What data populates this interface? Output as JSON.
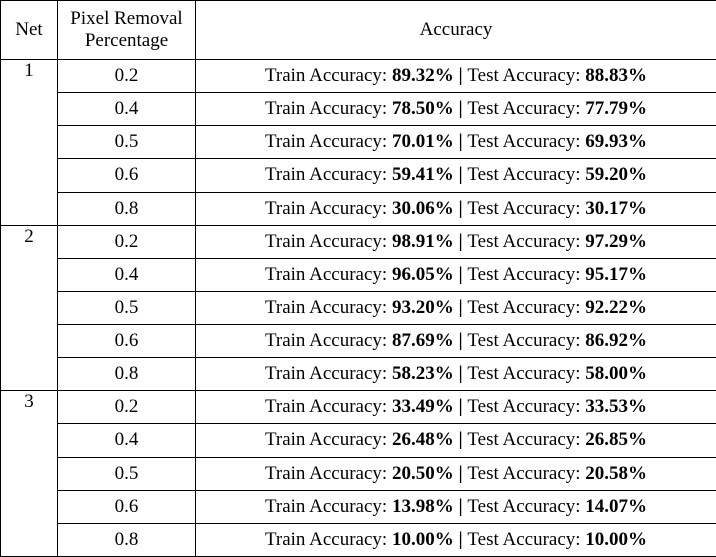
{
  "table": {
    "headers": {
      "net": "Net",
      "pixel_line1": "Pixel Removal",
      "pixel_line2": "Percentage",
      "accuracy": "Accuracy"
    },
    "labels": {
      "train_prefix": "Train Accuracy: ",
      "separator": " | ",
      "test_prefix": "Test Accuracy: "
    },
    "groups": [
      {
        "net": "1",
        "rows": [
          {
            "pct": "0.2",
            "train": "89.32%",
            "test": "88.83%"
          },
          {
            "pct": "0.4",
            "train": "78.50%",
            "test": "77.79%"
          },
          {
            "pct": "0.5",
            "train": "70.01%",
            "test": "69.93%"
          },
          {
            "pct": "0.6",
            "train": "59.41%",
            "test": "59.20%"
          },
          {
            "pct": "0.8",
            "train": "30.06%",
            "test": "30.17%"
          }
        ]
      },
      {
        "net": "2",
        "rows": [
          {
            "pct": "0.2",
            "train": "98.91%",
            "test": "97.29%"
          },
          {
            "pct": "0.4",
            "train": "96.05%",
            "test": "95.17%"
          },
          {
            "pct": "0.5",
            "train": "93.20%",
            "test": "92.22%"
          },
          {
            "pct": "0.6",
            "train": "87.69%",
            "test": "86.92%"
          },
          {
            "pct": "0.8",
            "train": "58.23%",
            "test": "58.00%"
          }
        ]
      },
      {
        "net": "3",
        "rows": [
          {
            "pct": "0.2",
            "train": "33.49%",
            "test": "33.53%"
          },
          {
            "pct": "0.4",
            "train": "26.48%",
            "test": "26.85%"
          },
          {
            "pct": "0.5",
            "train": "20.50%",
            "test": "20.58%"
          },
          {
            "pct": "0.6",
            "train": "13.98%",
            "test": "14.07%"
          },
          {
            "pct": "0.8",
            "train": "10.00%",
            "test": "10.00%"
          }
        ]
      }
    ]
  }
}
